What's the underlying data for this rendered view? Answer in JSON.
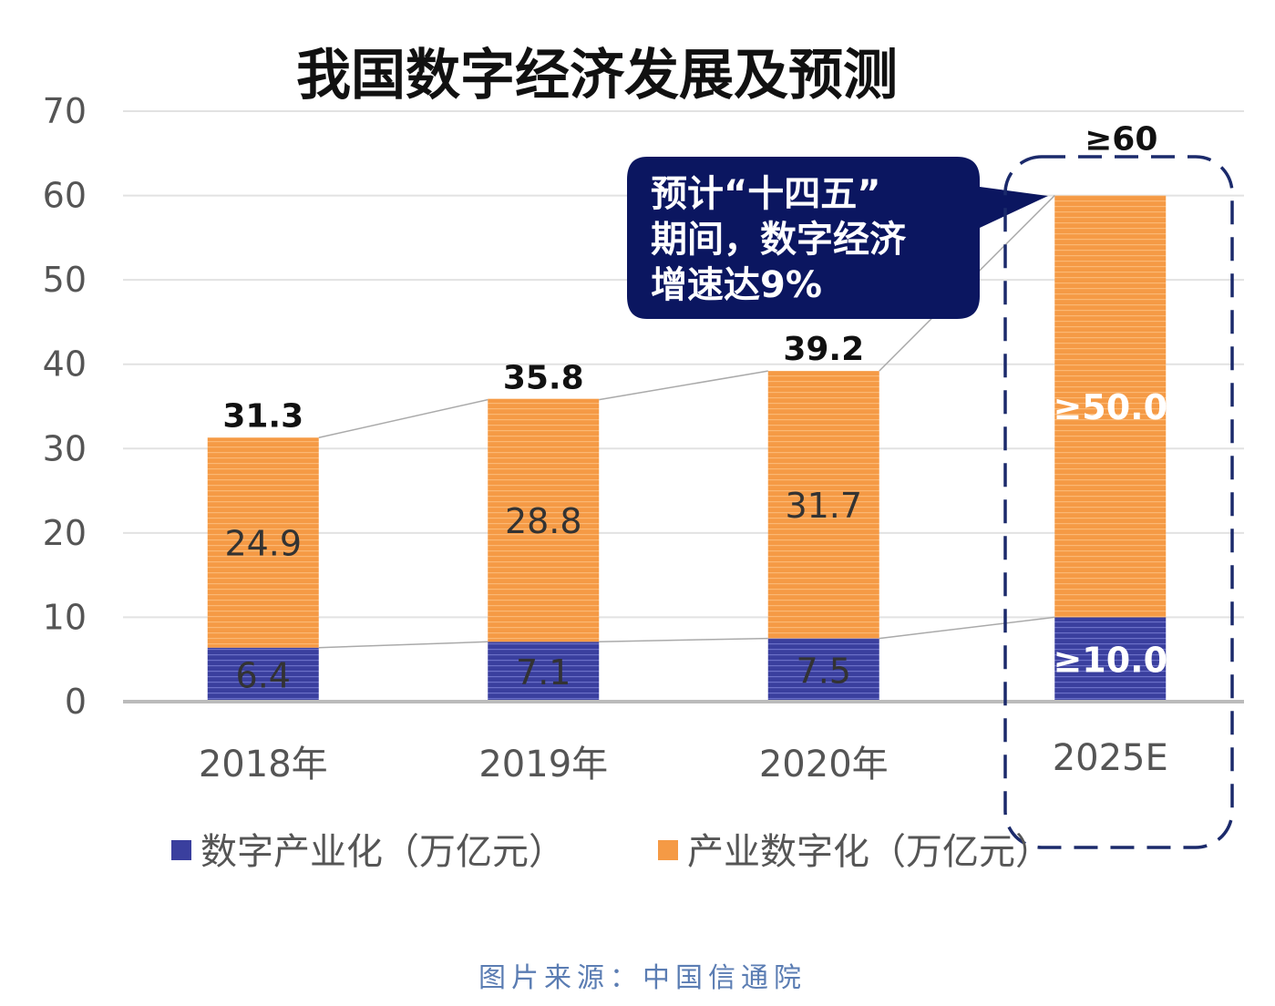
{
  "chart_data": {
    "type": "bar",
    "stacked": true,
    "title": "我国数字经济发展及预测",
    "categories": [
      "2018年",
      "2019年",
      "2020年",
      "2025E"
    ],
    "series": [
      {
        "name": "数字产业化（万亿元）",
        "values": [
          6.4,
          7.1,
          7.5,
          10.0
        ],
        "labels": [
          "6.4",
          "7.1",
          "7.5",
          "≥10.0"
        ],
        "color": "#3a3f9e"
      },
      {
        "name": "产业数字化（万亿元）",
        "values": [
          24.9,
          28.8,
          31.7,
          50.0
        ],
        "labels": [
          "24.9",
          "28.8",
          "31.7",
          "≥50.0"
        ],
        "color": "#f59a45"
      }
    ],
    "totals": [
      31.3,
      35.8,
      39.2,
      60
    ],
    "total_labels": [
      "31.3",
      "35.8",
      "39.2",
      "≥60"
    ],
    "ylim": [
      0,
      70
    ],
    "yticks": [
      "0",
      "10",
      "20",
      "30",
      "40",
      "50",
      "60",
      "70"
    ],
    "grid": true,
    "legend": "bottom",
    "annotation": [
      "预计“十四五”",
      "期间，数字经济",
      "增速达9%"
    ],
    "highlight_category": "2025E"
  },
  "source": "图片来源：中国信通院",
  "colors": {
    "callout": "#0b1660",
    "highlight_border": "#1b2a6b",
    "source": "#5b7db3"
  }
}
